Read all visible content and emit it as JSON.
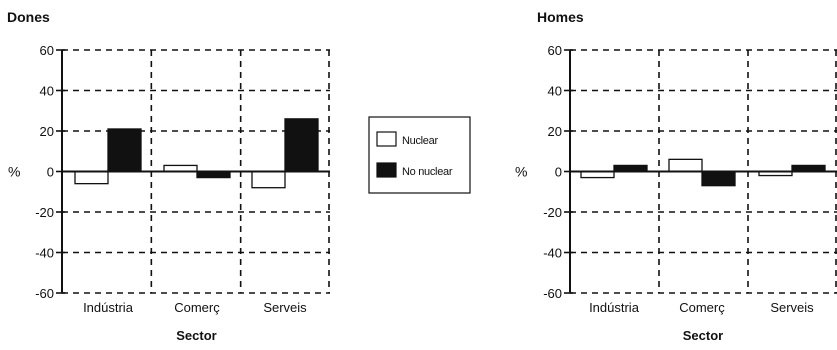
{
  "chart_data": [
    {
      "type": "bar",
      "title": "Dones",
      "xlabel": "Sector",
      "ylabel": "%",
      "ylim": [
        -60,
        60
      ],
      "yticks": [
        -60,
        -40,
        -20,
        0,
        20,
        40,
        60
      ],
      "categories": [
        "Indústria",
        "Comerç",
        "Serveis"
      ],
      "series": [
        {
          "name": "Nuclear",
          "values": [
            -6,
            3,
            -8
          ]
        },
        {
          "name": "No nuclear",
          "values": [
            21,
            -3,
            26
          ]
        }
      ],
      "grid": true
    },
    {
      "type": "bar",
      "title": "Homes",
      "xlabel": "Sector",
      "ylabel": "%",
      "ylim": [
        -60,
        60
      ],
      "yticks": [
        -60,
        -40,
        -20,
        0,
        20,
        40,
        60
      ],
      "categories": [
        "Indústria",
        "Comerç",
        "Serveis"
      ],
      "series": [
        {
          "name": "Nuclear",
          "values": [
            -3,
            6,
            -2
          ]
        },
        {
          "name": "No nuclear",
          "values": [
            3,
            -7,
            3
          ]
        }
      ],
      "grid": true
    }
  ],
  "legend": {
    "position": "center",
    "items": [
      {
        "label": "Nuclear",
        "color": "#ffffff"
      },
      {
        "label": "No nuclear",
        "color": "#111111"
      }
    ]
  },
  "colors": {
    "nuclear": "#ffffff",
    "no_nuclear": "#111111",
    "ink": "#111111"
  }
}
